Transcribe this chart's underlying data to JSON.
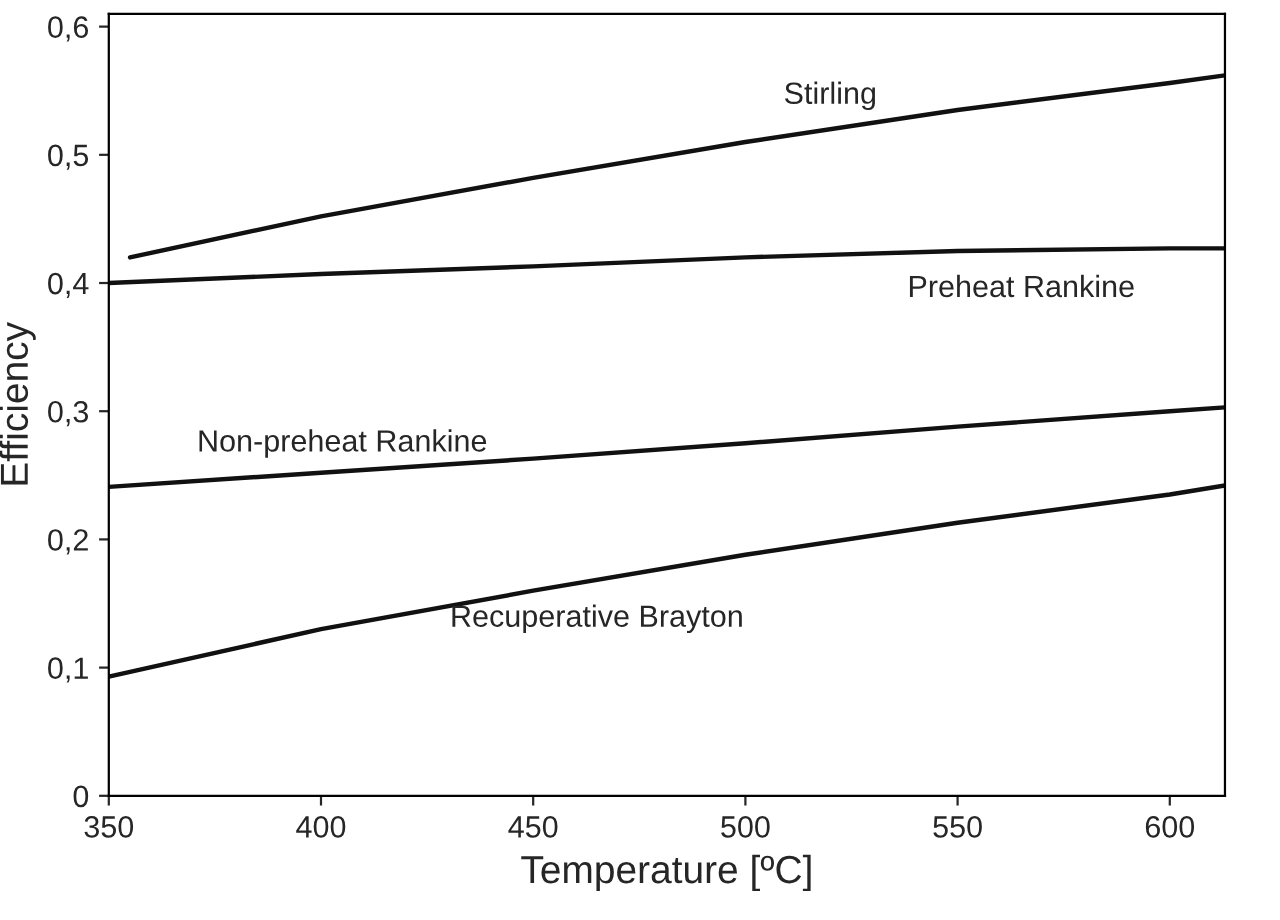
{
  "chart_data": {
    "type": "line",
    "xlabel": "Temperature [ºC]",
    "ylabel": "Efficiency",
    "xlim": [
      350,
      613
    ],
    "ylim": [
      0,
      0.61
    ],
    "xticks": [
      350,
      400,
      450,
      500,
      550,
      600
    ],
    "yticks": [
      0,
      {
        "value": 0.1,
        "label": "0,1"
      },
      {
        "value": 0.2,
        "label": "0,2"
      },
      {
        "value": 0.3,
        "label": "0,3"
      },
      {
        "value": 0.4,
        "label": "0,4"
      },
      {
        "value": 0.5,
        "label": "0,5"
      },
      {
        "value": 0.6,
        "label": "0,6"
      }
    ],
    "grid": false,
    "legend": false,
    "marker": "none",
    "line_style": "solid",
    "series": [
      {
        "name": "Stirling",
        "color": "#111111",
        "x": [
          355,
          400,
          450,
          500,
          550,
          600,
          613
        ],
        "values": [
          0.42,
          0.452,
          0.482,
          0.51,
          0.535,
          0.556,
          0.562
        ]
      },
      {
        "name": "Preheat Rankine",
        "color": "#111111",
        "x": [
          350,
          400,
          450,
          500,
          550,
          600,
          613
        ],
        "values": [
          0.4,
          0.407,
          0.413,
          0.42,
          0.425,
          0.427,
          0.427
        ]
      },
      {
        "name": "Non-preheat Rankine",
        "color": "#111111",
        "x": [
          350,
          400,
          450,
          500,
          550,
          600,
          613
        ],
        "values": [
          0.241,
          0.252,
          0.263,
          0.275,
          0.288,
          0.3,
          0.303
        ]
      },
      {
        "name": "Recuperative Brayton",
        "color": "#111111",
        "x": [
          350,
          400,
          450,
          500,
          550,
          600,
          613
        ],
        "values": [
          0.093,
          0.13,
          0.16,
          0.188,
          0.213,
          0.235,
          0.242
        ]
      }
    ]
  }
}
